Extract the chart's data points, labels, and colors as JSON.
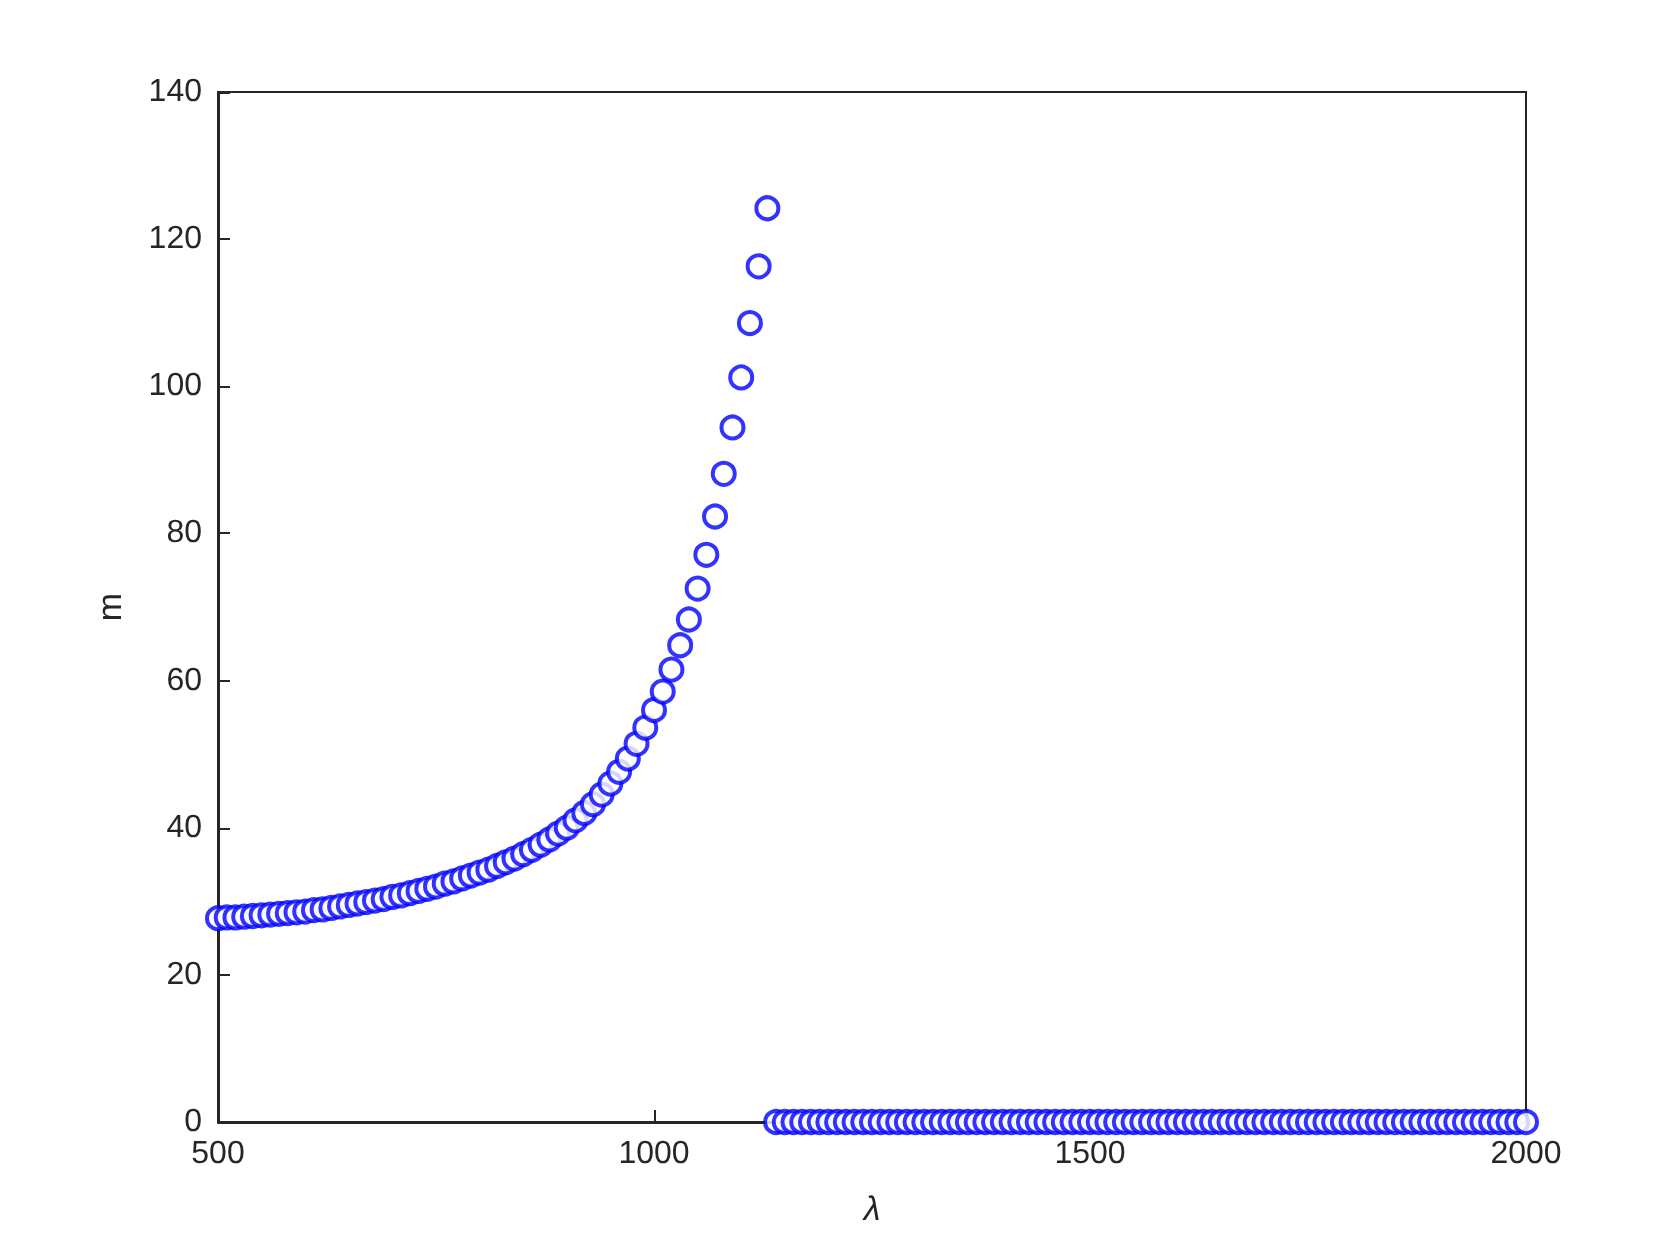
{
  "chart_data": {
    "type": "scatter",
    "xlabel": "λ",
    "ylabel": "m",
    "marker": "circle",
    "grid": false,
    "xlim": [
      500,
      2000
    ],
    "xticks": [
      500,
      1000,
      1500,
      2000
    ],
    "ylim": [
      0,
      140
    ],
    "yticks": [
      0,
      20,
      40,
      60,
      80,
      100,
      120,
      140
    ],
    "series": [
      {
        "color": "#0000ff",
        "x": [
          500,
          510,
          520,
          530,
          540,
          550,
          560,
          570,
          580,
          590,
          600,
          610,
          620,
          630,
          640,
          650,
          660,
          670,
          680,
          690,
          700,
          710,
          720,
          730,
          740,
          750,
          760,
          770,
          780,
          790,
          800,
          810,
          820,
          830,
          840,
          850,
          860,
          870,
          880,
          890,
          900,
          910,
          920,
          930,
          940,
          950,
          960,
          970,
          980,
          990,
          1000,
          1010,
          1020,
          1030,
          1040,
          1050,
          1060,
          1070,
          1080,
          1090,
          1100,
          1110,
          1120,
          1130,
          1140,
          1150,
          1160,
          1170,
          1180,
          1190,
          1200,
          1210,
          1220,
          1230,
          1240,
          1250,
          1260,
          1270,
          1280,
          1290,
          1300,
          1310,
          1320,
          1330,
          1340,
          1350,
          1360,
          1370,
          1380,
          1390,
          1400,
          1410,
          1420,
          1430,
          1440,
          1450,
          1460,
          1470,
          1480,
          1490,
          1500,
          1510,
          1520,
          1530,
          1540,
          1550,
          1560,
          1570,
          1580,
          1590,
          1600,
          1610,
          1620,
          1630,
          1640,
          1650,
          1660,
          1670,
          1680,
          1690,
          1700,
          1710,
          1720,
          1730,
          1740,
          1750,
          1760,
          1770,
          1780,
          1790,
          1800,
          1810,
          1820,
          1830,
          1840,
          1850,
          1860,
          1870,
          1880,
          1890,
          1900,
          1910,
          1920,
          1930,
          1940,
          1950,
          1960,
          1970,
          1980,
          1990,
          2000
        ],
        "values": [
          27.7,
          27.8,
          27.8,
          27.9,
          28.0,
          28.1,
          28.2,
          28.3,
          28.4,
          28.5,
          28.6,
          28.8,
          28.9,
          29.1,
          29.3,
          29.5,
          29.7,
          29.9,
          30.1,
          30.3,
          30.6,
          30.8,
          31.1,
          31.4,
          31.7,
          32.0,
          32.4,
          32.7,
          33.1,
          33.5,
          33.9,
          34.3,
          34.8,
          35.3,
          35.8,
          36.4,
          37.0,
          37.7,
          38.4,
          39.2,
          40.0,
          41.0,
          42.0,
          43.2,
          44.5,
          46.0,
          47.6,
          49.4,
          51.4,
          53.6,
          56.0,
          58.5,
          61.5,
          64.8,
          68.3,
          72.5,
          77.1,
          82.3,
          88.1,
          94.4,
          101.2,
          108.6,
          116.3,
          124.2,
          0,
          0,
          0,
          0,
          0,
          0,
          0,
          0,
          0,
          0,
          0,
          0,
          0,
          0,
          0,
          0,
          0,
          0,
          0,
          0,
          0,
          0,
          0,
          0,
          0,
          0,
          0,
          0,
          0,
          0,
          0,
          0,
          0,
          0,
          0,
          0,
          0,
          0,
          0,
          0,
          0,
          0,
          0,
          0,
          0,
          0,
          0,
          0,
          0,
          0,
          0,
          0,
          0,
          0,
          0,
          0,
          0,
          0,
          0,
          0,
          0,
          0,
          0,
          0,
          0,
          0,
          0,
          0,
          0,
          0,
          0,
          0,
          0,
          0,
          0,
          0,
          0,
          0,
          0,
          0,
          0,
          0,
          0,
          0,
          0,
          0,
          0
        ]
      }
    ]
  }
}
